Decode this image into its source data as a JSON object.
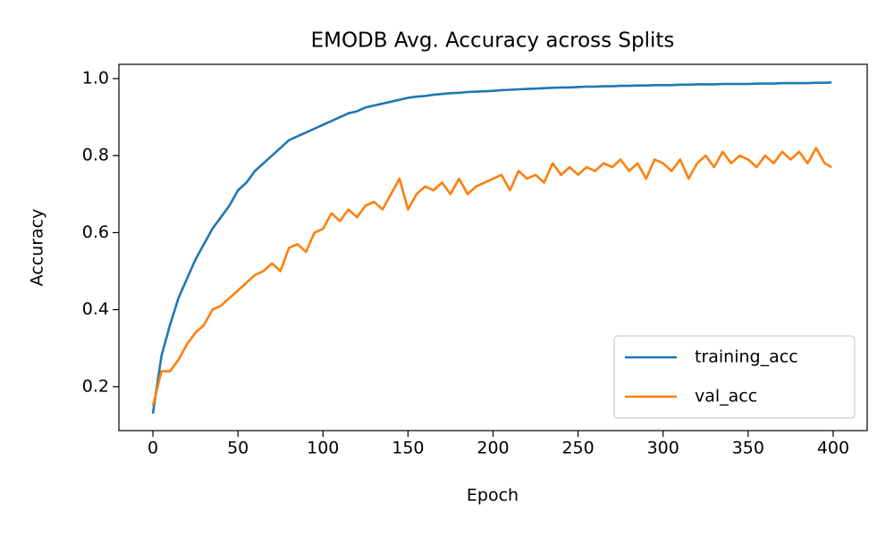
{
  "chart_data": {
    "type": "line",
    "title": "EMODB Avg. Accuracy across Splits",
    "xlabel": "Epoch",
    "ylabel": "Accuracy",
    "x": [
      0,
      5,
      10,
      15,
      20,
      25,
      30,
      35,
      40,
      45,
      50,
      55,
      60,
      65,
      70,
      75,
      80,
      85,
      90,
      95,
      100,
      105,
      110,
      115,
      120,
      125,
      130,
      135,
      140,
      145,
      150,
      155,
      160,
      165,
      170,
      175,
      180,
      185,
      190,
      195,
      200,
      205,
      210,
      215,
      220,
      225,
      230,
      235,
      240,
      245,
      250,
      255,
      260,
      265,
      270,
      275,
      280,
      285,
      290,
      295,
      300,
      305,
      310,
      315,
      320,
      325,
      330,
      335,
      340,
      345,
      350,
      355,
      360,
      365,
      370,
      375,
      380,
      385,
      390,
      395,
      399
    ],
    "series": [
      {
        "name": "training_acc",
        "color": "#1f77b4",
        "values": [
          0.13,
          0.28,
          0.36,
          0.43,
          0.48,
          0.53,
          0.57,
          0.61,
          0.64,
          0.67,
          0.71,
          0.73,
          0.76,
          0.78,
          0.8,
          0.82,
          0.84,
          0.85,
          0.86,
          0.87,
          0.88,
          0.89,
          0.9,
          0.91,
          0.915,
          0.925,
          0.93,
          0.935,
          0.94,
          0.945,
          0.95,
          0.953,
          0.955,
          0.958,
          0.96,
          0.962,
          0.963,
          0.965,
          0.966,
          0.967,
          0.968,
          0.97,
          0.971,
          0.972,
          0.973,
          0.974,
          0.975,
          0.976,
          0.977,
          0.977,
          0.978,
          0.979,
          0.979,
          0.98,
          0.98,
          0.981,
          0.981,
          0.982,
          0.982,
          0.983,
          0.983,
          0.983,
          0.984,
          0.984,
          0.985,
          0.985,
          0.985,
          0.986,
          0.986,
          0.986,
          0.986,
          0.987,
          0.987,
          0.987,
          0.988,
          0.988,
          0.988,
          0.988,
          0.989,
          0.989,
          0.99
        ]
      },
      {
        "name": "val_acc",
        "color": "#ff7f0e",
        "values": [
          0.15,
          0.24,
          0.24,
          0.27,
          0.31,
          0.34,
          0.36,
          0.4,
          0.41,
          0.43,
          0.45,
          0.47,
          0.49,
          0.5,
          0.52,
          0.5,
          0.56,
          0.57,
          0.55,
          0.6,
          0.61,
          0.65,
          0.63,
          0.66,
          0.64,
          0.67,
          0.68,
          0.66,
          0.7,
          0.74,
          0.66,
          0.7,
          0.72,
          0.71,
          0.73,
          0.7,
          0.74,
          0.7,
          0.72,
          0.73,
          0.74,
          0.75,
          0.71,
          0.76,
          0.74,
          0.75,
          0.73,
          0.78,
          0.75,
          0.77,
          0.75,
          0.77,
          0.76,
          0.78,
          0.77,
          0.79,
          0.76,
          0.78,
          0.74,
          0.79,
          0.78,
          0.76,
          0.79,
          0.74,
          0.78,
          0.8,
          0.77,
          0.81,
          0.78,
          0.8,
          0.79,
          0.77,
          0.8,
          0.78,
          0.81,
          0.79,
          0.81,
          0.78,
          0.82,
          0.78,
          0.77
        ]
      }
    ],
    "xlim": [
      -20,
      420
    ],
    "ylim": [
      0.086,
      1.037
    ],
    "xticks": [
      0,
      50,
      100,
      150,
      200,
      250,
      300,
      350,
      400
    ],
    "yticks": [
      0.2,
      0.4,
      0.6,
      0.8,
      {
        "value": 1,
        "label": "1.0"
      }
    ],
    "legend": "lower right"
  }
}
